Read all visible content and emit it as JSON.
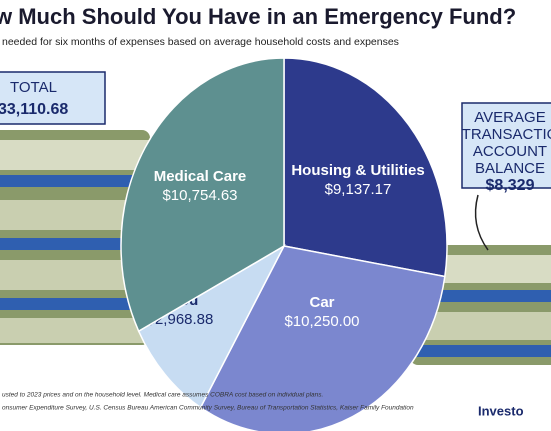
{
  "chart_data": {
    "type": "pie",
    "title": "w Much Should You Have in an Emergency Fund?",
    "subtitle": "needed for six months of expenses based on average household costs and expenses",
    "categories": [
      "Housing & Utilities",
      "Car",
      "Food",
      "Medical Care"
    ],
    "values": [
      9137.17,
      10250.0,
      2968.88,
      10754.63
    ],
    "value_labels": [
      "$9,137.17",
      "$10,250.00",
      "$2,968.88",
      "$10,754.63"
    ],
    "colors": [
      "#2d3a8c",
      "#7b87cf",
      "#c7dcf2",
      "#5e9090"
    ]
  },
  "total": {
    "label": "TOTAL",
    "value": "33,110.68"
  },
  "average_box": [
    "AVERAGE",
    "TRANSACTIO",
    "ACCOUNT",
    "BALANCE",
    "$8,329"
  ],
  "notes": [
    "usted to 2023 prices and on the household level. Medical care assumes COBRA cost based on individual plans.",
    "onsumer Expenditure Survey, U.S. Census Bureau American Community Survey, Bureau of Transportation Statistics, Kaiser Family Foundation"
  ],
  "logo": "Investo"
}
